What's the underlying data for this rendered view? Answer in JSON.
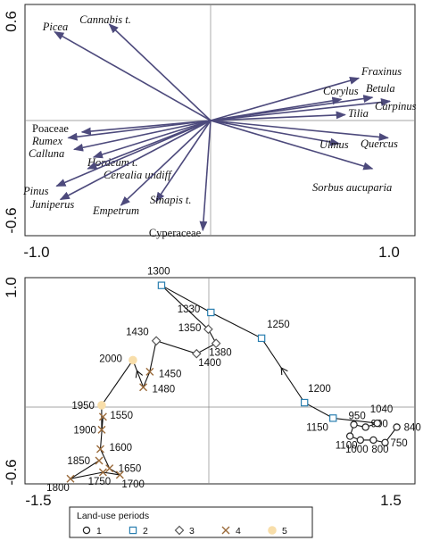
{
  "chart_data": [
    {
      "type": "biplot",
      "axis_ticks": {
        "xmin": "-1.0",
        "xmax": "1.0",
        "ymax": "0.6",
        "ymin": "-0.6"
      },
      "xlim": [
        -1.0,
        1.0
      ],
      "ylim": [
        -0.6,
        0.6
      ],
      "arrow_color": "#4d4a7c",
      "vectors": [
        {
          "label": "Picea",
          "x": -0.8,
          "y": 0.46,
          "italic": true
        },
        {
          "label": "Cannabis t.",
          "x": -0.52,
          "y": 0.5,
          "italic": true
        },
        {
          "label": "Fraxinus",
          "x": 0.76,
          "y": 0.22,
          "italic": true
        },
        {
          "label": "Corylus",
          "x": 0.67,
          "y": 0.11,
          "italic": true
        },
        {
          "label": "Betula",
          "x": 0.83,
          "y": 0.12,
          "italic": true
        },
        {
          "label": "Carpinus",
          "x": 0.92,
          "y": 0.1,
          "italic": true
        },
        {
          "label": "Tilia",
          "x": 0.69,
          "y": 0.03,
          "italic": true
        },
        {
          "label": "Poaceae",
          "x": -0.66,
          "y": -0.06,
          "italic": false
        },
        {
          "label": "Rumex",
          "x": -0.73,
          "y": -0.09,
          "italic": true
        },
        {
          "label": "Calluna",
          "x": -0.7,
          "y": -0.15,
          "italic": true
        },
        {
          "label": "Hordeum t.",
          "x": -0.6,
          "y": -0.19,
          "italic": true
        },
        {
          "label": "Cerealia undiff.",
          "x": -0.63,
          "y": -0.25,
          "italic": true
        },
        {
          "label": "Ulmus",
          "x": 0.66,
          "y": -0.12,
          "italic": true
        },
        {
          "label": "Quercus",
          "x": 0.91,
          "y": -0.09,
          "italic": true
        },
        {
          "label": "Pinus",
          "x": -0.79,
          "y": -0.34,
          "italic": true
        },
        {
          "label": "Juniperus",
          "x": -0.77,
          "y": -0.41,
          "italic": true
        },
        {
          "label": "Empetrum",
          "x": -0.46,
          "y": -0.44,
          "italic": true
        },
        {
          "label": "Sinapis t.",
          "x": -0.28,
          "y": -0.42,
          "italic": true
        },
        {
          "label": "Sorbus aucuparia",
          "x": 0.83,
          "y": -0.25,
          "italic": true
        },
        {
          "label": "Cyperaceae",
          "x": -0.04,
          "y": -0.57,
          "italic": false
        }
      ]
    },
    {
      "type": "scatter",
      "axis_ticks": {
        "xmin": "-1.5",
        "xmax": "1.5",
        "ymax": "1.0",
        "ymin": "-0.6"
      },
      "xlim": [
        -1.5,
        1.5
      ],
      "ylim": [
        -0.6,
        1.0
      ],
      "path_order": [
        "840",
        "750",
        "800",
        "1000",
        "1100",
        "950",
        "900",
        "1040",
        "1150",
        "1200",
        "1250",
        "1330",
        "1300",
        "1350",
        "1380",
        "1400",
        "1430",
        "1450",
        "1480",
        "2000",
        "1950",
        "1900",
        "1550",
        "1600",
        "1650",
        "1700",
        "1750",
        "1800",
        "1850"
      ],
      "points": [
        {
          "label": "840",
          "x": 1.36,
          "y": -0.16,
          "period": 1
        },
        {
          "label": "750",
          "x": 1.27,
          "y": -0.28,
          "period": 1
        },
        {
          "label": "800",
          "x": 1.18,
          "y": -0.26,
          "period": 1
        },
        {
          "label": "1000",
          "x": 1.08,
          "y": -0.26,
          "period": 1
        },
        {
          "label": "1100",
          "x": 1.0,
          "y": -0.23,
          "period": 1
        },
        {
          "label": "950",
          "x": 1.03,
          "y": -0.14,
          "period": 1
        },
        {
          "label": "900",
          "x": 1.12,
          "y": -0.16,
          "period": 1
        },
        {
          "label": "1040",
          "x": 1.21,
          "y": -0.13,
          "period": 1
        },
        {
          "label": "1150",
          "x": 0.87,
          "y": -0.09,
          "period": 2
        },
        {
          "label": "1200",
          "x": 0.65,
          "y": 0.03,
          "period": 2
        },
        {
          "label": "1250",
          "x": 0.32,
          "y": 0.53,
          "period": 2
        },
        {
          "label": "1330",
          "x": -0.07,
          "y": 0.73,
          "period": 2
        },
        {
          "label": "1300",
          "x": -0.45,
          "y": 0.94,
          "period": 2
        },
        {
          "label": "1350",
          "x": -0.09,
          "y": 0.6,
          "period": 3
        },
        {
          "label": "1380",
          "x": -0.03,
          "y": 0.49,
          "period": 3
        },
        {
          "label": "1400",
          "x": -0.18,
          "y": 0.41,
          "period": 3
        },
        {
          "label": "1430",
          "x": -0.49,
          "y": 0.51,
          "period": 3
        },
        {
          "label": "1450",
          "x": -0.54,
          "y": 0.27,
          "period": 4
        },
        {
          "label": "1480",
          "x": -0.59,
          "y": 0.15,
          "period": 4
        },
        {
          "label": "2000",
          "x": -0.67,
          "y": 0.36,
          "period": 5
        },
        {
          "label": "1950",
          "x": -0.91,
          "y": 0.01,
          "period": 5
        },
        {
          "label": "1900",
          "x": -0.91,
          "y": -0.18,
          "period": 4
        },
        {
          "label": "1550",
          "x": -0.9,
          "y": -0.08,
          "period": 4
        },
        {
          "label": "1600",
          "x": -0.92,
          "y": -0.33,
          "period": 4
        },
        {
          "label": "1650",
          "x": -0.85,
          "y": -0.48,
          "period": 4
        },
        {
          "label": "1700",
          "x": -0.77,
          "y": -0.53,
          "period": 4
        },
        {
          "label": "1750",
          "x": -0.9,
          "y": -0.51,
          "period": 4
        },
        {
          "label": "1800",
          "x": -1.15,
          "y": -0.56,
          "period": 4
        },
        {
          "label": "1850",
          "x": -0.93,
          "y": -0.42,
          "period": 4
        }
      ],
      "legend": {
        "title": "Land-use periods",
        "placement": "bottom",
        "items": [
          {
            "label": "1",
            "marker": "circle"
          },
          {
            "label": "2",
            "marker": "square"
          },
          {
            "label": "3",
            "marker": "diamond"
          },
          {
            "label": "4",
            "marker": "x"
          },
          {
            "label": "5",
            "marker": "dot"
          }
        ]
      },
      "colors": {
        "1": "#222222",
        "2": "#2a7fb0",
        "3": "#555555",
        "4": "#9a6a3a",
        "5": "#f8deaa"
      }
    }
  ]
}
